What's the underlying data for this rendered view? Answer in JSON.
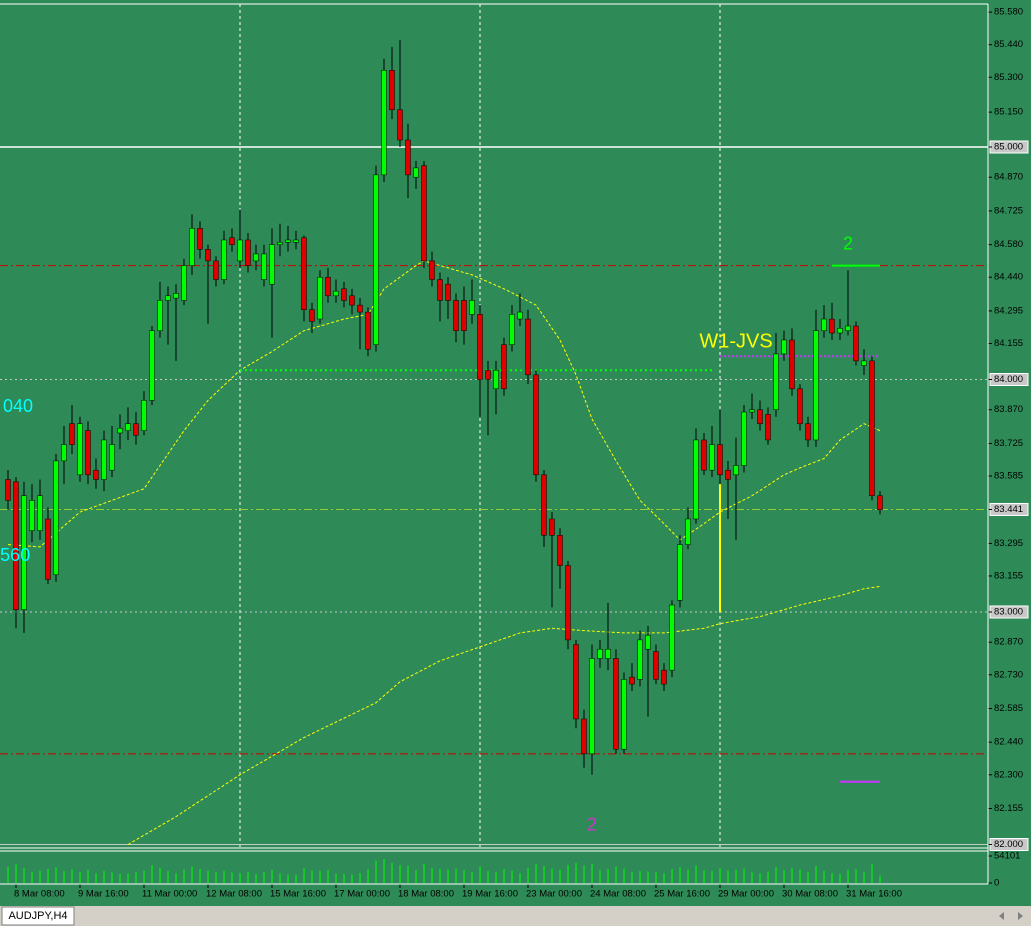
{
  "chart_data": {
    "type": "candlestick",
    "symbol": "AUDJPY,H4",
    "background": "#2e8b57",
    "up_color": "#00ff00",
    "down_color": "#e00000",
    "ylim": [
      81.985,
      85.615
    ],
    "yticks": [
      {
        "value": 85.58,
        "label": "85.580"
      },
      {
        "value": 85.44,
        "label": "85.440"
      },
      {
        "value": 85.3,
        "label": "85.300"
      },
      {
        "value": 85.15,
        "label": "85.150"
      },
      {
        "value": 85.0,
        "label": "85.000"
      },
      {
        "value": 84.87,
        "label": "84.870"
      },
      84.725,
      {
        "value": 84.58,
        "label": "84.580"
      },
      {
        "value": 84.44,
        "label": "84.440"
      },
      84.295,
      84.155,
      {
        "value": 84.0,
        "label": "84.000"
      },
      {
        "value": 83.87,
        "label": "83.870"
      },
      83.725,
      83.585,
      83.441,
      83.295,
      83.155,
      {
        "value": 83.0,
        "label": "83.000"
      },
      {
        "value": 82.87,
        "label": "82.870"
      },
      {
        "value": 82.73,
        "label": "82.730"
      },
      82.585,
      {
        "value": 82.44,
        "label": "82.440"
      },
      {
        "value": 82.3,
        "label": "82.300"
      },
      82.155,
      {
        "value": 82.0,
        "label": "82.000"
      }
    ],
    "xgrid": [
      29,
      59,
      89
    ],
    "categories": [
      null,
      "8 Mar 08:00",
      null,
      null,
      null,
      null,
      null,
      null,
      null,
      "9 Mar 16:00",
      null,
      null,
      null,
      null,
      null,
      null,
      null,
      "11 Mar 00:00",
      null,
      null,
      null,
      null,
      null,
      null,
      null,
      "12 Mar 08:00",
      null,
      null,
      null,
      null,
      null,
      null,
      null,
      "15 Mar 16:00",
      null,
      null,
      null,
      null,
      null,
      null,
      null,
      "17 Mar 00:00",
      null,
      null,
      null,
      null,
      null,
      null,
      null,
      "18 Mar 08:00",
      null,
      null,
      null,
      null,
      null,
      null,
      null,
      "19 Mar 16:00",
      null,
      null,
      null,
      null,
      null,
      null,
      null,
      "23 Mar 00:00",
      null,
      null,
      null,
      null,
      null,
      null,
      null,
      "24 Mar 08:00",
      null,
      null,
      null,
      null,
      null,
      null,
      null,
      "25 Mar 16:00",
      null,
      null,
      null,
      null,
      null,
      null,
      null,
      "29 Mar 00:00",
      null,
      null,
      null,
      null,
      null,
      null,
      null,
      "30 Mar 08:00",
      null,
      null,
      null,
      null,
      null,
      null,
      null,
      "31 Mar 16:00",
      null,
      null,
      null,
      null
    ],
    "open": [
      83.57,
      83.56,
      83.01,
      83.35,
      83.35,
      83.4,
      83.16,
      83.65,
      83.81,
      83.59,
      83.78,
      83.61,
      83.57,
      83.61,
      83.77,
      83.78,
      83.81,
      83.78,
      83.91,
      84.21,
      84.34,
      84.35,
      84.34,
      84.49,
      84.65,
      84.56,
      84.51,
      84.43,
      84.61,
      84.51,
      84.6,
      84.51,
      84.43,
      84.41,
      84.58,
      84.59,
      84.59,
      84.61,
      84.3,
      84.26,
      84.44,
      84.36,
      84.39,
      84.36,
      84.32,
      84.29,
      84.15,
      84.88,
      85.33,
      85.16,
      85.03,
      84.87,
      84.92,
      84.51,
      84.43,
      84.41,
      84.34,
      84.34,
      84.28,
      84.28,
      84.04,
      83.96,
      84.15,
      84.15,
      84.26,
      84.26,
      84.02,
      83.59,
      83.4,
      83.33,
      83.2,
      82.86,
      82.54,
      82.39,
      82.8,
      82.8,
      82.8,
      82.41,
      82.72,
      82.71,
      82.84,
      82.83,
      82.75,
      82.75,
      83.05,
      83.29,
      83.4,
      83.74,
      83.61,
      83.72,
      83.61,
      83.59,
      83.63,
      83.86,
      83.87,
      83.85,
      83.87,
      84.11,
      84.17,
      83.96,
      83.81,
      83.74,
      84.21,
      84.26,
      84.2,
      84.21,
      84.23,
      84.06,
      84.08,
      83.5
    ],
    "high": [
      83.61,
      83.58,
      83.56,
      83.55,
      83.57,
      83.45,
      83.68,
      83.8,
      83.89,
      83.84,
      83.82,
      83.66,
      83.78,
      83.8,
      83.85,
      83.88,
      83.86,
      83.95,
      84.23,
      84.42,
      84.4,
      84.41,
      84.52,
      84.71,
      84.68,
      84.58,
      84.53,
      84.64,
      84.65,
      84.73,
      84.63,
      84.58,
      84.58,
      84.65,
      84.67,
      84.66,
      84.64,
      84.62,
      84.33,
      84.47,
      84.48,
      84.43,
      84.42,
      84.39,
      84.35,
      84.31,
      84.92,
      85.38,
      85.43,
      85.46,
      85.1,
      84.94,
      84.94,
      84.55,
      84.46,
      84.44,
      84.37,
      84.4,
      84.43,
      84.32,
      84.08,
      84.08,
      84.18,
      84.32,
      84.37,
      84.3,
      84.04,
      83.61,
      83.43,
      83.36,
      83.22,
      82.88,
      82.58,
      82.86,
      82.88,
      83.04,
      82.84,
      82.74,
      82.78,
      82.92,
      82.94,
      82.86,
      82.78,
      83.05,
      83.33,
      83.45,
      83.79,
      83.77,
      83.8,
      83.87,
      83.65,
      83.75,
      83.89,
      83.94,
      83.91,
      83.88,
      84.2,
      84.21,
      84.22,
      83.98,
      83.84,
      84.3,
      84.32,
      84.33,
      84.26,
      84.47,
      84.25,
      84.13,
      84.1,
      83.52
    ],
    "low": [
      83.44,
      82.93,
      82.91,
      83.3,
      83.31,
      83.12,
      83.13,
      83.55,
      83.68,
      83.56,
      83.55,
      83.53,
      83.52,
      83.58,
      83.7,
      83.74,
      83.72,
      83.76,
      83.89,
      84.18,
      84.15,
      84.08,
      84.32,
      84.45,
      84.52,
      84.24,
      84.4,
      84.41,
      84.55,
      84.48,
      84.46,
      84.47,
      84.4,
      84.18,
      84.53,
      84.55,
      84.56,
      84.25,
      84.2,
      84.24,
      84.33,
      84.33,
      84.31,
      84.28,
      84.13,
      84.1,
      84.12,
      84.85,
      85.12,
      85.0,
      84.78,
      84.82,
      84.48,
      84.4,
      84.25,
      84.26,
      84.16,
      84.15,
      84.24,
      83.84,
      83.76,
      83.85,
      83.93,
      84.12,
      84.23,
      83.98,
      83.56,
      83.28,
      83.02,
      83.1,
      82.84,
      82.5,
      82.33,
      82.3,
      82.76,
      82.75,
      82.39,
      82.39,
      82.66,
      82.68,
      82.55,
      82.69,
      82.66,
      82.72,
      83.02,
      83.27,
      83.38,
      83.59,
      83.58,
      83.55,
      83.4,
      83.31,
      83.6,
      83.83,
      83.78,
      83.72,
      83.84,
      84.08,
      83.93,
      83.78,
      83.71,
      83.71,
      84.18,
      84.17,
      84.17,
      84.19,
      84.06,
      84.02,
      83.48,
      83.42
    ],
    "close": [
      83.48,
      83.01,
      83.5,
      83.48,
      83.5,
      83.14,
      83.65,
      83.72,
      83.72,
      83.81,
      83.59,
      83.57,
      83.74,
      83.72,
      83.79,
      83.81,
      83.76,
      83.91,
      84.21,
      84.34,
      84.36,
      84.37,
      84.49,
      84.65,
      84.56,
      84.51,
      84.43,
      84.6,
      84.58,
      84.6,
      84.49,
      84.54,
      84.54,
      84.58,
      84.59,
      84.6,
      84.6,
      84.3,
      84.25,
      84.44,
      84.36,
      84.38,
      84.34,
      84.32,
      84.29,
      84.13,
      84.88,
      85.33,
      85.16,
      85.03,
      84.88,
      84.91,
      84.51,
      84.43,
      84.34,
      84.34,
      84.21,
      84.21,
      84.34,
      84.0,
      84.0,
      84.04,
      83.96,
      84.28,
      84.29,
      84.02,
      83.59,
      83.33,
      83.33,
      83.2,
      82.88,
      82.54,
      82.39,
      82.8,
      82.84,
      82.84,
      82.41,
      82.71,
      82.69,
      82.88,
      82.9,
      82.71,
      82.69,
      83.03,
      83.29,
      83.4,
      83.74,
      83.61,
      83.72,
      83.59,
      83.57,
      83.63,
      83.86,
      83.87,
      83.81,
      83.74,
      84.11,
      84.17,
      83.96,
      83.81,
      83.74,
      84.21,
      84.26,
      84.2,
      84.22,
      84.23,
      84.08,
      84.08,
      83.5,
      83.44
    ],
    "lines": [
      {
        "color": "#ffff00",
        "x": [
          0,
          4,
          9,
          13,
          17,
          22,
          25,
          29,
          33,
          37,
          42,
          45,
          47,
          51,
          52,
          55,
          58,
          62,
          66,
          69,
          71,
          73,
          76,
          79,
          82,
          84,
          87,
          89,
          93,
          97,
          99,
          102,
          104,
          107,
          109
        ],
        "values": [
          83.29,
          83.28,
          83.43,
          83.48,
          83.53,
          83.78,
          83.91,
          84.04,
          84.12,
          84.21,
          84.26,
          84.28,
          84.39,
          84.49,
          84.51,
          84.48,
          84.45,
          84.39,
          84.32,
          84.17,
          84.02,
          83.83,
          83.65,
          83.48,
          83.38,
          83.31,
          83.38,
          83.43,
          83.5,
          83.59,
          83.62,
          83.66,
          83.74,
          83.81,
          83.78
        ]
      },
      {
        "color": "#ffff00",
        "x": [
          15,
          21,
          29,
          37,
          46,
          49,
          54,
          59,
          64,
          68,
          72,
          77,
          82,
          87,
          89,
          94,
          99,
          104,
          107,
          109
        ],
        "values": [
          82.0,
          82.12,
          82.3,
          82.46,
          82.61,
          82.7,
          82.79,
          82.85,
          82.91,
          82.93,
          82.92,
          82.91,
          82.91,
          82.93,
          82.95,
          82.98,
          83.03,
          83.07,
          83.1,
          83.11
        ]
      }
    ],
    "levels": [
      {
        "value": 85.0,
        "color": "#ffffff",
        "dash": "none"
      },
      {
        "value": 84.49,
        "color": "#d00000",
        "dash": "8,3,2,3"
      },
      {
        "value": 84.0,
        "color": "#c8c8c8",
        "dash": "2,3"
      },
      {
        "value": 83.441,
        "color": "#9acd32",
        "dash": "8,3,2,3"
      },
      {
        "value": 83.0,
        "color": "#c8c8c8",
        "dash": "2,3"
      },
      {
        "value": 82.39,
        "color": "#d00000",
        "dash": "8,3,2,3"
      },
      {
        "value": 82.0,
        "color": "#c8c8c8",
        "dash": "none"
      }
    ],
    "segments": [
      {
        "x": [
          29,
          88
        ],
        "y": [
          84.04,
          84.04
        ],
        "color": "#00ff00",
        "dash": "2,3"
      },
      {
        "x": [
          89,
          109
        ],
        "y": [
          84.1,
          84.1
        ],
        "color": "#cc33ff",
        "dash": "2,2"
      },
      {
        "x": [
          103,
          109
        ],
        "y": [
          84.49,
          84.49
        ],
        "color": "#00ff00",
        "dash": "none"
      },
      {
        "x": [
          104,
          109
        ],
        "y": [
          82.27,
          82.27
        ],
        "color": "#cc33ff",
        "dash": "none"
      },
      {
        "x": [
          89,
          89
        ],
        "y": [
          83.55,
          83.0
        ],
        "color": "#ffff00",
        "dash": "none"
      }
    ],
    "annotations": [
      {
        "text": "2",
        "x": 105,
        "y": 84.58,
        "color": "#00ff00",
        "size": 18
      },
      {
        "text": "W1-JVS",
        "x": 91,
        "y": 84.16,
        "color": "#ffff00",
        "size": 20
      },
      {
        "text": "2",
        "x": 73,
        "y": 82.08,
        "color": "#cc33cc",
        "size": 18
      },
      {
        "text": "040",
        "x": 1.25,
        "y": 83.88,
        "color": "#00ffff",
        "size": 18
      },
      {
        "text": "560",
        "x": 0.9,
        "y": 83.24,
        "color": "#00ffff",
        "size": 18
      }
    ],
    "volume": {
      "color": "#00ff00",
      "ylim": [
        0,
        54101
      ],
      "yticks": [
        54101,
        0
      ],
      "values": [
        32000,
        38000,
        30000,
        22000,
        25000,
        28000,
        31000,
        24000,
        27000,
        22000,
        26000,
        20000,
        24000,
        21000,
        18000,
        19000,
        22000,
        25000,
        36000,
        30000,
        24000,
        20000,
        27000,
        33000,
        28000,
        25000,
        22000,
        24000,
        21000,
        20000,
        23000,
        18000,
        22000,
        26000,
        19000,
        17000,
        16000,
        30000,
        25000,
        24000,
        26000,
        19000,
        18000,
        17000,
        20000,
        27000,
        45000,
        48000,
        40000,
        36000,
        34000,
        26000,
        38000,
        30000,
        28000,
        27000,
        29000,
        26000,
        22000,
        33000,
        24000,
        22000,
        28000,
        25000,
        20000,
        30000,
        38000,
        34000,
        29000,
        27000,
        36000,
        40000,
        35000,
        38000,
        26000,
        28000,
        33000,
        29000,
        21000,
        24000,
        23000,
        22000,
        20000,
        28000,
        31000,
        27000,
        35000,
        26000,
        24000,
        30000,
        25000,
        27000,
        29000,
        21000,
        19000,
        23000,
        32000,
        26000,
        30000,
        27000,
        22000,
        34000,
        24000,
        20000,
        18000,
        26000,
        28000,
        21000,
        39000,
        15000
      ]
    }
  }
}
